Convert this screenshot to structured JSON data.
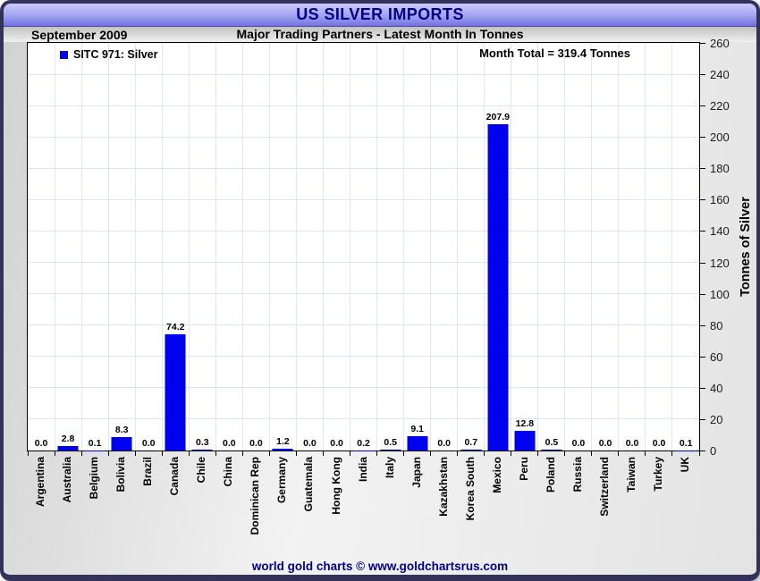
{
  "chart_data": {
    "type": "bar",
    "title": "US SILVER IMPORTS",
    "period": "September 2009",
    "subtitle": "Major Trading Partners - Latest Month In Tonnes",
    "legend": {
      "label": "SITC 971: Silver",
      "position": "top-left",
      "swatch_color": "#0000f0"
    },
    "annotation": "Month Total = 319.4 Tonnes",
    "month_total_tonnes": 319.4,
    "ylabel": "Tonnes of Silver",
    "ylim": [
      0,
      260
    ],
    "ytick_step": 20,
    "grid": true,
    "bar_color": "#0000f0",
    "value_label_decimals": 1,
    "categories": [
      "Argentina",
      "Australia",
      "Belgium",
      "Bolivia",
      "Brazil",
      "Canada",
      "Chile",
      "China",
      "Dominican Rep",
      "Germany",
      "Guatemala",
      "Hong Kong",
      "India",
      "Italy",
      "Japan",
      "Kazakhstan",
      "Korea South",
      "Mexico",
      "Peru",
      "Poland",
      "Russia",
      "Switzerland",
      "Taiwan",
      "Turkey",
      "UK"
    ],
    "values": [
      0.0,
      2.8,
      0.1,
      8.3,
      0.0,
      74.2,
      0.3,
      0.0,
      0.0,
      1.2,
      0.0,
      0.0,
      0.2,
      0.5,
      9.1,
      0.0,
      0.7,
      207.9,
      12.8,
      0.5,
      0.0,
      0.0,
      0.0,
      0.0,
      0.1
    ]
  },
  "footer": {
    "text": "world gold charts © www.goldchartsrus.com"
  },
  "colors": {
    "title_text": "#00008b",
    "bar": "#0000f0",
    "gridline": "#dbe6f3",
    "footer_text": "#00008b",
    "header_band_top": "#cbcbfb",
    "header_band_bottom": "#7272df",
    "frame_border": "#32325a"
  }
}
